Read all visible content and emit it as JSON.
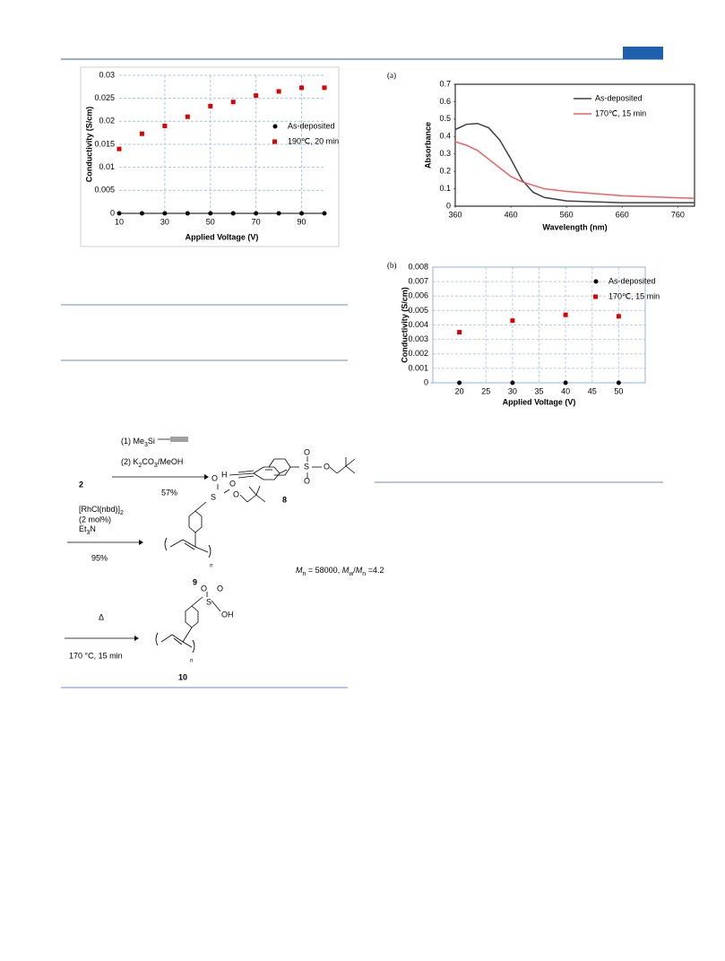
{
  "chart_data": [
    {
      "type": "scatter",
      "x_label": "Applied Voltage (V)",
      "y_label": "Conductivity (S/cm)",
      "x": [
        10,
        20,
        30,
        40,
        50,
        60,
        70,
        80,
        90,
        100
      ],
      "series": [
        {
          "name": "As-deposited",
          "color": "#000000",
          "marker": "circle",
          "values": [
            0,
            0,
            0,
            0,
            0,
            0,
            0,
            0,
            0,
            0
          ]
        },
        {
          "name": "190℃, 20 min",
          "color": "#e00000",
          "marker": "square",
          "values": [
            0.014,
            0.0173,
            0.019,
            0.021,
            0.0233,
            0.0242,
            0.0256,
            0.0265,
            0.0273,
            0.0273
          ]
        }
      ],
      "xlim": [
        10,
        100
      ],
      "xticks": [
        10,
        30,
        50,
        70,
        90
      ],
      "ylim": [
        0,
        0.03
      ],
      "yticks": [
        0,
        0.005,
        0.01,
        0.015,
        0.02,
        0.025,
        0.03
      ],
      "grid": true,
      "legend": "center right"
    },
    {
      "type": "line",
      "panel_label": "(a)",
      "x_label": "Wavelength (nm)",
      "y_label": "Absorbance",
      "x": [
        360,
        380,
        400,
        420,
        440,
        460,
        480,
        500,
        520,
        560,
        660,
        790
      ],
      "series": [
        {
          "name": "As-deposited",
          "color": "#404040",
          "values": [
            0.44,
            0.47,
            0.475,
            0.45,
            0.38,
            0.27,
            0.15,
            0.08,
            0.05,
            0.03,
            0.02,
            0.02
          ]
        },
        {
          "name": "170℃, 15 min",
          "color": "#f06060",
          "values": [
            0.37,
            0.35,
            0.32,
            0.27,
            0.22,
            0.17,
            0.14,
            0.12,
            0.1,
            0.085,
            0.06,
            0.045
          ]
        }
      ],
      "xlim": [
        360,
        790
      ],
      "xticks": [
        360,
        460,
        560,
        660,
        760
      ],
      "ylim": [
        0,
        0.7
      ],
      "yticks": [
        0,
        0.1,
        0.2,
        0.3,
        0.4,
        0.5,
        0.6,
        0.7
      ],
      "grid": false,
      "legend": "upper right"
    },
    {
      "type": "scatter",
      "panel_label": "(b)",
      "x_label": "Applied Voltage (V)",
      "y_label": "Conductivity (S/cm)",
      "x": [
        20,
        30,
        40,
        50
      ],
      "series": [
        {
          "name": "As-deposited",
          "color": "#000000",
          "marker": "circle",
          "values": [
            0,
            0,
            0,
            0
          ]
        },
        {
          "name": "170℃, 15 min",
          "color": "#e00000",
          "marker": "square",
          "values": [
            0.0035,
            0.0043,
            0.0047,
            0.0046
          ]
        }
      ],
      "xlim": [
        15,
        55
      ],
      "xticks": [
        20,
        25,
        30,
        35,
        40,
        45,
        50
      ],
      "ylim": [
        0,
        0.008
      ],
      "yticks": [
        0,
        0.001,
        0.002,
        0.003,
        0.004,
        0.005,
        0.006,
        0.007,
        0.008
      ],
      "grid": true,
      "legend": "upper right"
    }
  ],
  "scheme": {
    "start": "2",
    "step1": {
      "reagent1": [
        "(1) Me",
        "3",
        "Si"
      ],
      "reagent2": [
        "(2) K",
        "2",
        "CO",
        "3",
        "/MeOH"
      ],
      "yield": "57%"
    },
    "product8": {
      "label": "8",
      "atoms": [
        "H",
        "S",
        "O",
        "O",
        "O"
      ]
    },
    "step2": {
      "reagent1": [
        "[RhCl(nbd)]",
        "2"
      ],
      "reagent2": "(2 mol%)",
      "reagent3": [
        "Et",
        "3",
        "N"
      ],
      "yield": "95%"
    },
    "product9": {
      "label": "9",
      "atoms": [
        "S",
        "O",
        "O",
        "O"
      ],
      "repeat": "n",
      "mw": [
        "M",
        "n",
        " = 58000, ",
        "M",
        "w",
        "/",
        "M",
        "n",
        " =4.2"
      ]
    },
    "step3": {
      "reagent1": "Δ",
      "reagent2": "170 °C, 15 min"
    },
    "product10": {
      "label": "10",
      "atoms": [
        "S",
        "O",
        "O",
        "OH"
      ],
      "repeat": "n"
    }
  }
}
